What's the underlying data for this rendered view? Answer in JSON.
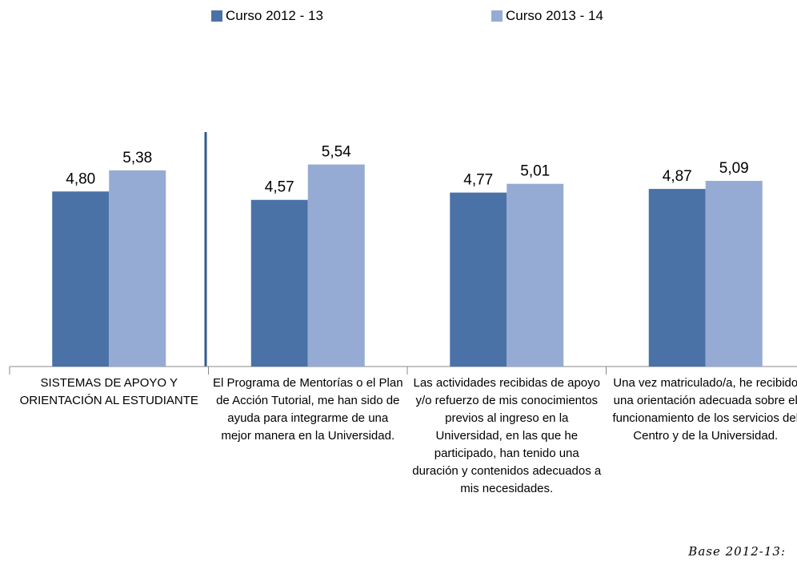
{
  "chart_data": {
    "type": "bar",
    "categories": [
      "SISTEMAS DE APOYO Y ORIENTACIÓN AL ESTUDIANTE",
      "El Programa de Mentorías o el Plan de Acción Tutorial, me han sido de ayuda para integrarme de una mejor manera en la Universidad.",
      "Las actividades recibidas de apoyo y/o refuerzo de mis conocimientos previos al ingreso en la Universidad, en las que he participado, han tenido una duración y contenidos adecuados a mis necesidades.",
      "Una vez matriculado/a, he recibido una orientación adecuada sobre el funcionamiento de los servicios del Centro y de la Universidad."
    ],
    "series": [
      {
        "name": "Curso 2012 - 13",
        "color": "#4a72a6",
        "values": [
          4.8,
          4.57,
          4.77,
          4.87
        ],
        "value_labels": [
          "4,80",
          "4,57",
          "4,77",
          "4,87"
        ]
      },
      {
        "name": "Curso 2013 - 14",
        "color": "#95abd3",
        "values": [
          5.38,
          5.54,
          5.01,
          5.09
        ],
        "value_labels": [
          "5,38",
          "5,54",
          "5,01",
          "5,09"
        ]
      }
    ],
    "ylim": [
      0,
      7
    ],
    "annotation": "Base 2012-13:"
  }
}
